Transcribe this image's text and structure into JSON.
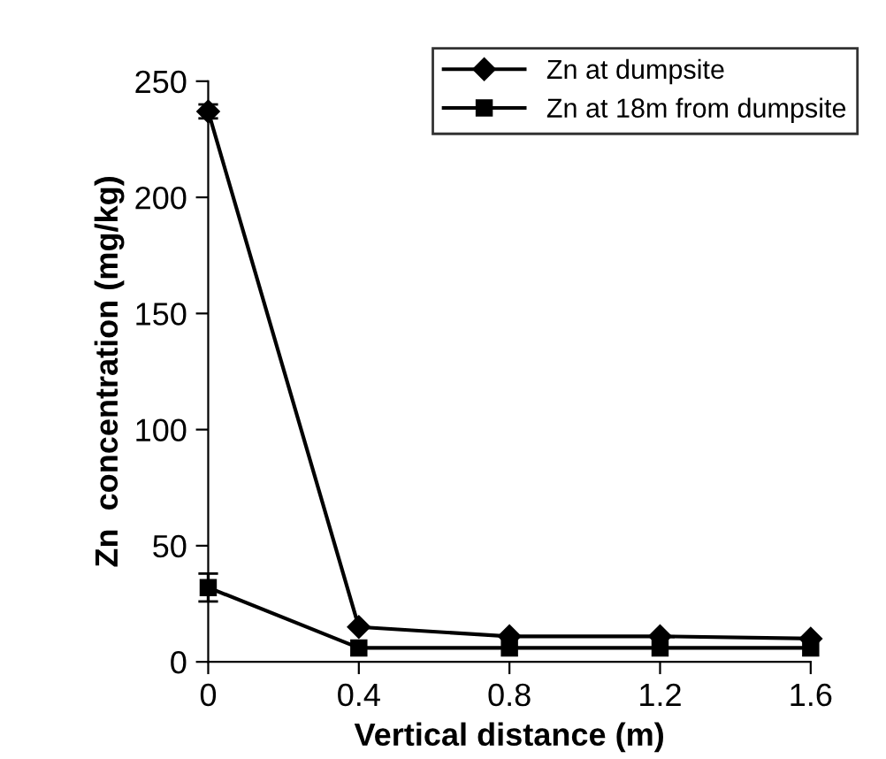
{
  "chart_data": {
    "type": "line",
    "xlabel": "Vertical distance (m)",
    "ylabel": "Zn  concentration (mg/kg)",
    "x": [
      0,
      0.4,
      0.8,
      1.2,
      1.6
    ],
    "series": [
      {
        "name": "Zn at dumpsite",
        "color": "#000000",
        "marker": "diamond",
        "values": [
          237,
          15,
          11,
          11,
          10
        ],
        "errors": [
          3,
          null,
          null,
          null,
          null
        ]
      },
      {
        "name": "Zn at 18m from dumpsite",
        "color": "#000000",
        "marker": "square",
        "values": [
          32,
          6,
          6,
          6,
          6
        ],
        "errors": [
          6,
          null,
          null,
          null,
          null
        ]
      }
    ],
    "xlim": [
      0,
      1.6
    ],
    "xticks": [
      0,
      0.4,
      0.8,
      1.2,
      1.6
    ],
    "ylim": [
      0,
      250
    ],
    "yticks": [
      0,
      50,
      100,
      150,
      200,
      250
    ],
    "grid": false,
    "legend": "top right",
    "line_style": "solid"
  }
}
